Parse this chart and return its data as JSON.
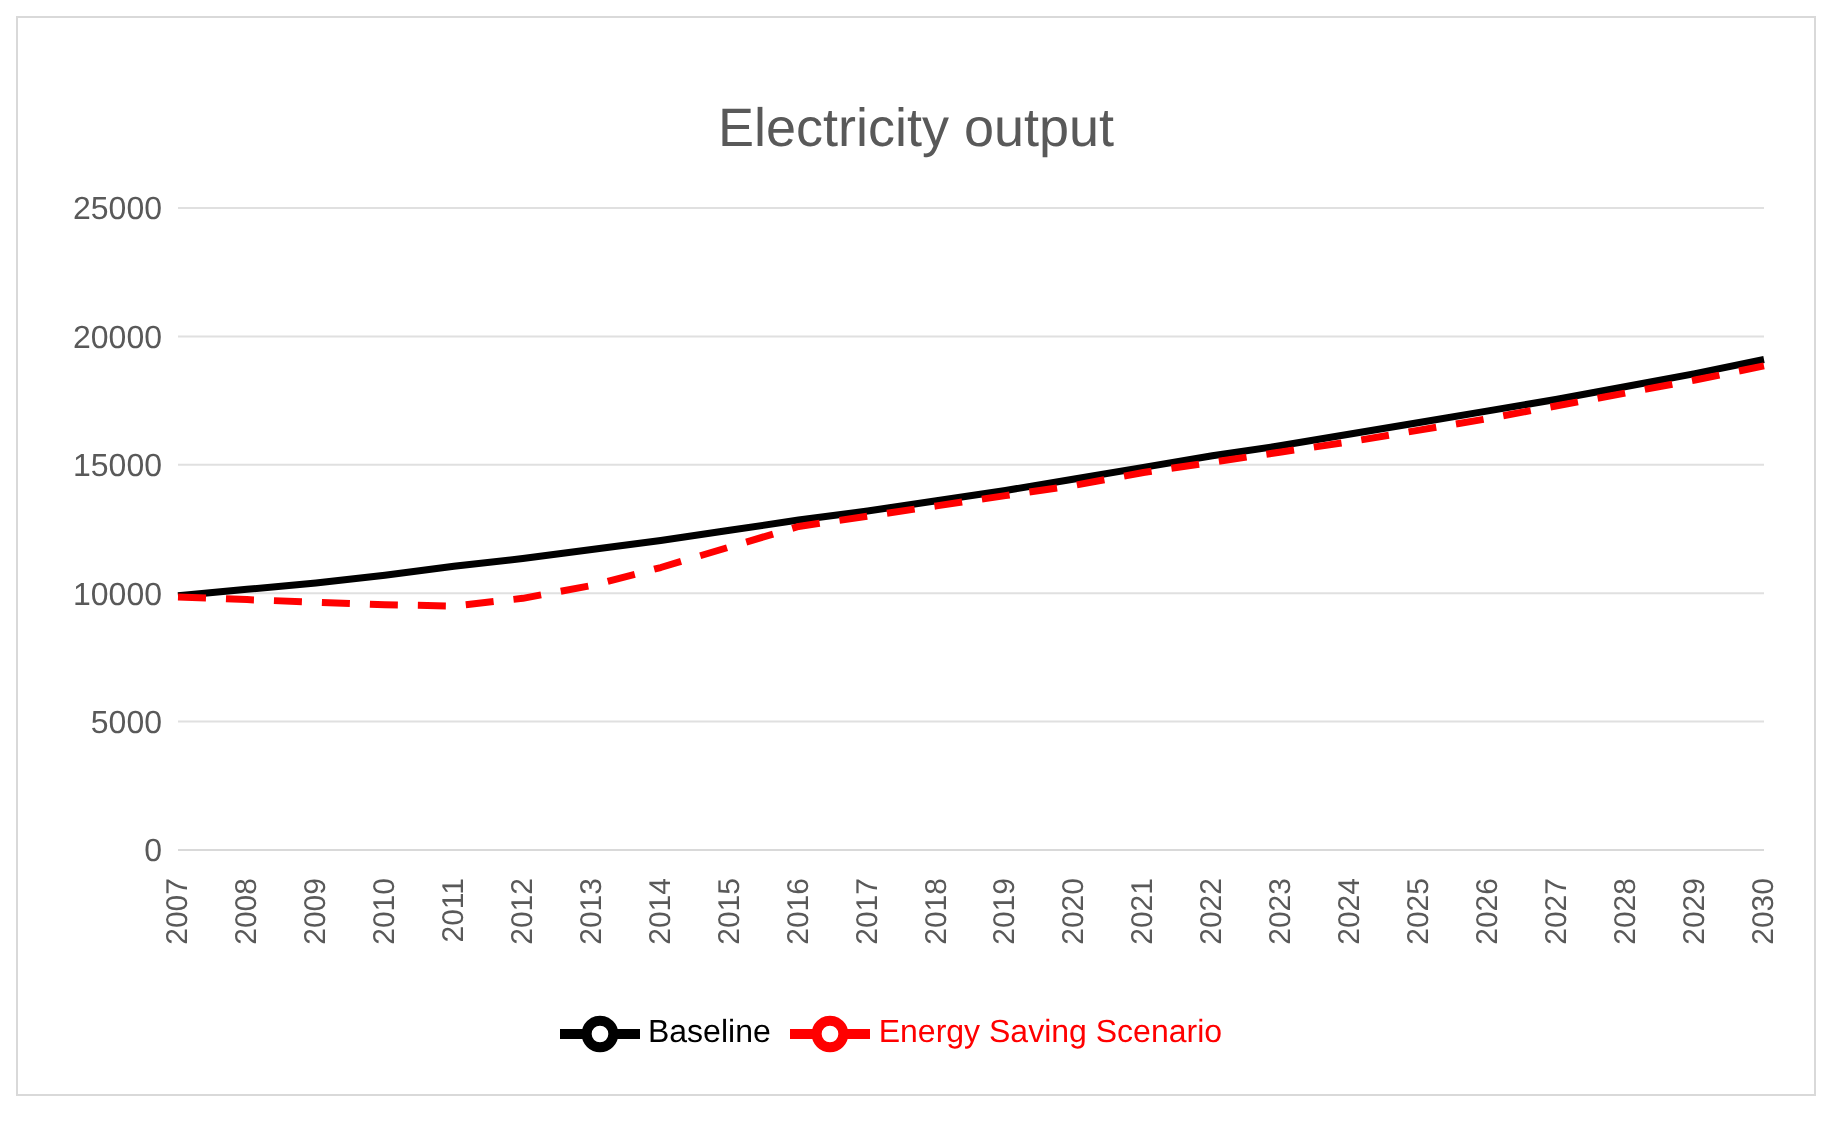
{
  "chart_data": {
    "type": "line",
    "title": "Electricity output",
    "categories": [
      "2007",
      "2008",
      "2009",
      "2010",
      "2011",
      "2012",
      "2013",
      "2014",
      "2015",
      "2016",
      "2017",
      "2018",
      "2019",
      "2020",
      "2021",
      "2022",
      "2023",
      "2024",
      "2025",
      "2026",
      "2027",
      "2028",
      "2029",
      "2030"
    ],
    "series": [
      {
        "name": "Baseline",
        "color": "#000000",
        "line_style": "solid",
        "values": [
          9900,
          10150,
          10400,
          10700,
          11050,
          11350,
          11700,
          12050,
          12450,
          12850,
          13200,
          13600,
          14000,
          14450,
          14900,
          15350,
          15750,
          16200,
          16650,
          17100,
          17550,
          18050,
          18550,
          19100
        ]
      },
      {
        "name": "Energy Saving Scenario",
        "color": "#ff0000",
        "line_style": "dashed",
        "values": [
          9850,
          9750,
          9650,
          9550,
          9500,
          9800,
          10300,
          11000,
          11800,
          12600,
          13000,
          13400,
          13800,
          14200,
          14700,
          15100,
          15500,
          15900,
          16350,
          16800,
          17300,
          17800,
          18300,
          18850
        ]
      }
    ],
    "ylim": [
      0,
      25000
    ],
    "yticks": [
      0,
      5000,
      10000,
      15000,
      20000,
      25000
    ],
    "grid": "y",
    "legend": "bottom",
    "marker": "none"
  }
}
